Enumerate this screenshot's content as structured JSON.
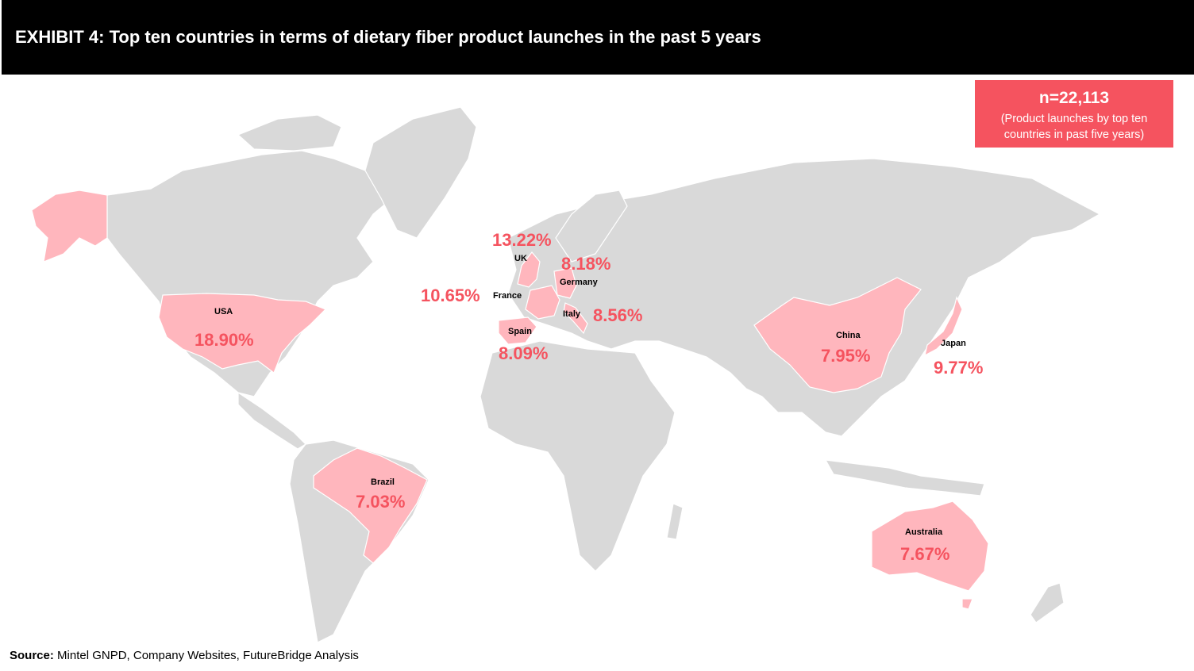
{
  "header": {
    "title": "EXHIBIT 4: Top ten countries in terms of dietary fiber product launches in the past 5 years"
  },
  "summary": {
    "n": "n=22,113",
    "note": "(Product launches by top ten countries in past five years)"
  },
  "colors": {
    "highlight_fill": "#ffb6bd",
    "accent": "#f5535f",
    "land": "#d9d9d9",
    "header_bg": "#000000"
  },
  "countries": [
    {
      "name": "USA",
      "share": "18.90%"
    },
    {
      "name": "UK",
      "share": "13.22%"
    },
    {
      "name": "France",
      "share": "10.65%"
    },
    {
      "name": "Japan",
      "share": "9.77%"
    },
    {
      "name": "Italy",
      "share": "8.56%"
    },
    {
      "name": "Germany",
      "share": "8.18%"
    },
    {
      "name": "Spain",
      "share": "8.09%"
    },
    {
      "name": "China",
      "share": "7.95%"
    },
    {
      "name": "Australia",
      "share": "7.67%"
    },
    {
      "name": "Brazil",
      "share": "7.03%"
    }
  ],
  "source": {
    "label": "Source:",
    "text": "Mintel GNPD, Company Websites, FutureBridge Analysis"
  }
}
